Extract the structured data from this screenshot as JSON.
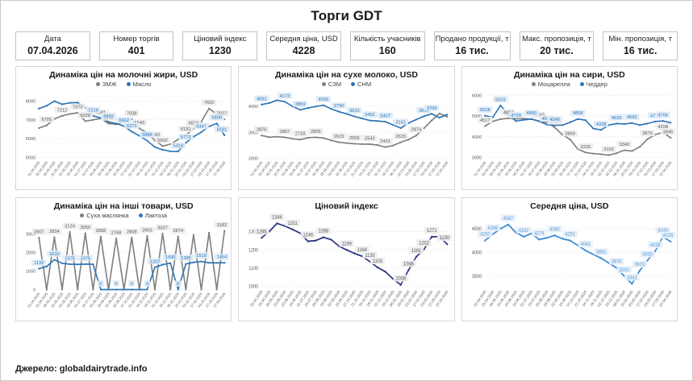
{
  "page": {
    "title": "Торги GDT",
    "source": "Джерело: globaldairytrade.info"
  },
  "stats": [
    {
      "label": "Дата",
      "value": "07.04.2026"
    },
    {
      "label": "Номер торгів",
      "value": "401"
    },
    {
      "label": "Ціновий індекс",
      "value": "1230"
    },
    {
      "label": "Середня ціна, USD",
      "value": "4228"
    },
    {
      "label": "Кількість учасників",
      "value": "160"
    },
    {
      "label": "Продано продукції, т",
      "value": "16 тис."
    },
    {
      "label": "Макс. пропозиція, т",
      "value": "20 тис."
    },
    {
      "label": "Мін. пропозиція, т",
      "value": "16 тис."
    }
  ],
  "x_dates": [
    "01.04.2025",
    "15.04.2025",
    "06.05.2025",
    "20.05.2025",
    "03.06.2025",
    "16.06.2025",
    "01.07.2025",
    "15.07.2025",
    "05.08.2025",
    "19.08.2025",
    "02.09.2025",
    "16.09.2025",
    "07.10.2025",
    "21.10.2025",
    "04.11.2025",
    "18.11.2025",
    "02.12.2025",
    "16.12.2025",
    "06.01.2026",
    "20.01.2026",
    "03.02.2026",
    "17.02.2026",
    "03.03.2026",
    "17.03.2026",
    "07.04.2026"
  ],
  "chart_data": [
    {
      "type": "line",
      "title": "Динаміка цін на молочні жири, USD",
      "y_ticks": [
        5000,
        6000,
        7000,
        8000
      ],
      "y_min": 4950,
      "y_max": 8350,
      "legend_position": "top",
      "grid": true,
      "series": [
        {
          "name": "ЗМЖ",
          "color": "#7f7f7f",
          "label_color": "#595959",
          "label_bg": "#eeeeee",
          "values": [
            6560,
            6705,
            7050,
            7212,
            7310,
            7373,
            6928,
            7000,
            7081,
            6802,
            6760,
            6900,
            7038,
            6543,
            6300,
            5902,
            5602,
            5700,
            5950,
            6191,
            6524,
            6900,
            7602,
            7300,
            7027
          ],
          "labels": {
            "1": "6705",
            "3": "7212",
            "5": "7373",
            "6": "6928",
            "8": "7081",
            "9": "6802",
            "12": "7038",
            "13": "6543",
            "15": "5902",
            "16": "5602",
            "19": "6191",
            "20": "6524",
            "22": "7602",
            "24": "7027"
          }
        },
        {
          "name": "Масло",
          "color": "#2e75b6",
          "label_color": "#2e75b6",
          "label_bg": "#deebf7",
          "values": [
            7600,
            7750,
            7995,
            7830,
            7905,
            7920,
            7650,
            7214,
            7100,
            6892,
            6800,
            6662,
            6371,
            6150,
            5886,
            5550,
            5400,
            5320,
            5314,
            5773,
            6100,
            6347,
            6650,
            6806,
            6181
          ],
          "labels": {
            "7": "7214",
            "9": "6892",
            "11": "6662",
            "12": "6371",
            "14": "5886",
            "18": "5314",
            "19": "5773",
            "21": "6347",
            "23": "6806",
            "24": "6181"
          }
        }
      ]
    },
    {
      "type": "line",
      "title": "Динаміка цін на сухе молоко, USD",
      "y_ticks": [
        2000,
        3000,
        4000
      ],
      "y_min": 2000,
      "y_max": 4450,
      "legend_position": "top",
      "grid": true,
      "series": [
        {
          "name": "СЗМ",
          "color": "#7f7f7f",
          "label_color": "#595959",
          "label_bg": "#eeeeee",
          "values": [
            2876,
            2810,
            2830,
            2807,
            2750,
            2718,
            2790,
            2805,
            2780,
            2690,
            2615,
            2585,
            2559,
            2545,
            2542,
            2510,
            2431,
            2490,
            2615,
            2720,
            2874,
            3150,
            3450,
            3720,
            3600
          ],
          "labels": {
            "0": "2876",
            "3": "2807",
            "5": "2718",
            "7": "2805",
            "10": "2615",
            "12": "2559",
            "14": "2542",
            "16": "2431",
            "18": "2615",
            "20": "2874"
          }
        },
        {
          "name": "СНМ",
          "color": "#2e75b6",
          "label_color": "#2e75b6",
          "label_bg": "#deebf7",
          "values": [
            4062,
            4120,
            4230,
            4173,
            4000,
            3859,
            3930,
            3990,
            4036,
            3900,
            3790,
            3710,
            3610,
            3530,
            3452,
            3430,
            3407,
            3280,
            3161,
            3350,
            3490,
            3614,
            3709,
            3560,
            3680
          ],
          "labels": {
            "0": "4062",
            "3": "4173",
            "5": "3859",
            "8": "4036",
            "10": "3790",
            "12": "3610",
            "14": "3452",
            "16": "3407",
            "18": "3161",
            "21": "3614",
            "22": "3709"
          }
        }
      ]
    },
    {
      "type": "line",
      "title": "Динаміка цін на сири, USD",
      "y_ticks": [
        3000,
        4000,
        5000,
        6000
      ],
      "y_min": 2950,
      "y_max": 6050,
      "legend_position": "top",
      "grid": true,
      "series": [
        {
          "name": "Моцарелла",
          "color": "#7f7f7f",
          "label_color": "#595959",
          "label_bg": "#eeeeee",
          "values": [
            4517,
            4750,
            4850,
            4897,
            4870,
            4880,
            4850,
            4760,
            4700,
            4447,
            4100,
            3869,
            3400,
            3230,
            3180,
            3150,
            3102,
            3200,
            3340,
            3300,
            3500,
            3879,
            4100,
            4208,
            3945
          ],
          "labels": {
            "0": "4517",
            "3": "4897",
            "7": "4760",
            "9": "4447",
            "11": "3869",
            "13": "3230",
            "16": "3102",
            "18": "3340",
            "21": "3879",
            "23": "4208",
            "24": "3945"
          }
        },
        {
          "name": "Чеддер",
          "color": "#2e75b6",
          "label_color": "#2e75b6",
          "label_bg": "#deebf7",
          "values": [
            5018,
            4940,
            5519,
            5060,
            4759,
            4820,
            4860,
            4750,
            4589,
            4548,
            4560,
            4700,
            4858,
            4800,
            4400,
            4328,
            4560,
            4639,
            4620,
            4665,
            4560,
            4640,
            4736,
            4766,
            4680
          ],
          "labels": {
            "0": "5018",
            "2": "5519",
            "4": "4759",
            "6": "4860",
            "8": "4589",
            "9": "4548",
            "12": "4858",
            "15": "4328",
            "17": "4639",
            "19": "4665",
            "22": "4736",
            "23": "4766"
          }
        }
      ]
    },
    {
      "type": "line",
      "title": "Динаміка цін на інші товари, USD",
      "y_ticks": [
        0,
        1000,
        2000,
        3000
      ],
      "y_min": 0,
      "y_max": 3450,
      "legend_position": "top",
      "grid": true,
      "series": [
        {
          "name": "Суха маслянка",
          "color": "#7f7f7f",
          "label_color": "#595959",
          "label_bg": "#eeeeee",
          "values": [
            2807,
            0,
            2834,
            0,
            3124,
            0,
            3050,
            0,
            2868,
            0,
            2768,
            0,
            2808,
            0,
            2903,
            0,
            3027,
            0,
            2874,
            0,
            2950,
            0,
            3080,
            0,
            3182
          ],
          "labels": {
            "0": "2807",
            "2": "2834",
            "4": "3124",
            "6": "3050",
            "8": "2868",
            "10": "2768",
            "12": "2808",
            "14": "2903",
            "16": "3027",
            "18": "2874",
            "24": "3182"
          }
        },
        {
          "name": "Лактоза",
          "color": "#2e75b6",
          "label_color": "#2e75b6",
          "label_bg": "#deebf7",
          "values": [
            1132,
            1250,
            1610,
            1420,
            1375,
            1360,
            1375,
            1370,
            0,
            0,
            0,
            0,
            0,
            0,
            0,
            1207,
            1350,
            1430,
            0,
            1385,
            1470,
            1519,
            1450,
            1445,
            1454
          ],
          "labels": {
            "0": "1132",
            "2": "1610",
            "4": "1375",
            "6": "1375",
            "8": "0",
            "10": "0",
            "12": "0",
            "14": "0",
            "15": "1207",
            "17": "1430",
            "18": "0",
            "19": "1385",
            "21": "1519",
            "24": "1454"
          }
        }
      ]
    },
    {
      "type": "line",
      "title": "Ціновий індекс",
      "y_ticks": [
        1000,
        1100,
        1200,
        1300
      ],
      "y_min": 995,
      "y_max": 1372,
      "legend_position": "none",
      "grid": true,
      "series": [
        {
          "name": "Ціновий індекс",
          "color": "#2a3580",
          "label_color": "#595959",
          "label_bg": "#eeeeee",
          "values": [
            1265,
            1300,
            1344,
            1330,
            1311,
            1290,
            1246,
            1250,
            1268,
            1255,
            1220,
            1199,
            1180,
            1164,
            1135,
            1103,
            1080,
            1040,
            1008,
            1088,
            1161,
            1202,
            1271,
            1272,
            1230
          ],
          "labels": {
            "0": "1265",
            "2": "1344",
            "4": "1311",
            "6": "1246",
            "8": "1268",
            "11": "1199",
            "13": "1164",
            "14": "1135",
            "15": "1103",
            "18": "1008",
            "19": "1088",
            "20": "1161",
            "21": "1202",
            "22": "1271",
            "24": "1230"
          }
        }
      ]
    },
    {
      "type": "line",
      "title": "Середня ціна, USD",
      "y_ticks": [
        3500,
        4000,
        4500
      ],
      "y_min": 3270,
      "y_max": 4720,
      "legend_position": "none",
      "grid": true,
      "series": [
        {
          "name": "Середня ціна",
          "color": "#3a8bd8",
          "label_color": "#5b9bd5",
          "label_bg": "#e7f0fa",
          "values": [
            4250,
            4385,
            4500,
            4587,
            4420,
            4332,
            4400,
            4274,
            4310,
            4360,
            4290,
            4251,
            4150,
            4041,
            3960,
            3881,
            3780,
            3676,
            3502,
            3341,
            3615,
            3830,
            4028,
            4330,
            4228
          ],
          "labels": {
            "0": "4250",
            "1": "4385",
            "3": "4587",
            "5": "4332",
            "7": "4274",
            "9": "4360",
            "11": "4251",
            "13": "4041",
            "15": "3881",
            "17": "3676",
            "18": "3502",
            "19": "3341",
            "20": "3615",
            "21": "3830",
            "22": "4028",
            "23": "4330",
            "24": "4228"
          }
        }
      ]
    }
  ]
}
